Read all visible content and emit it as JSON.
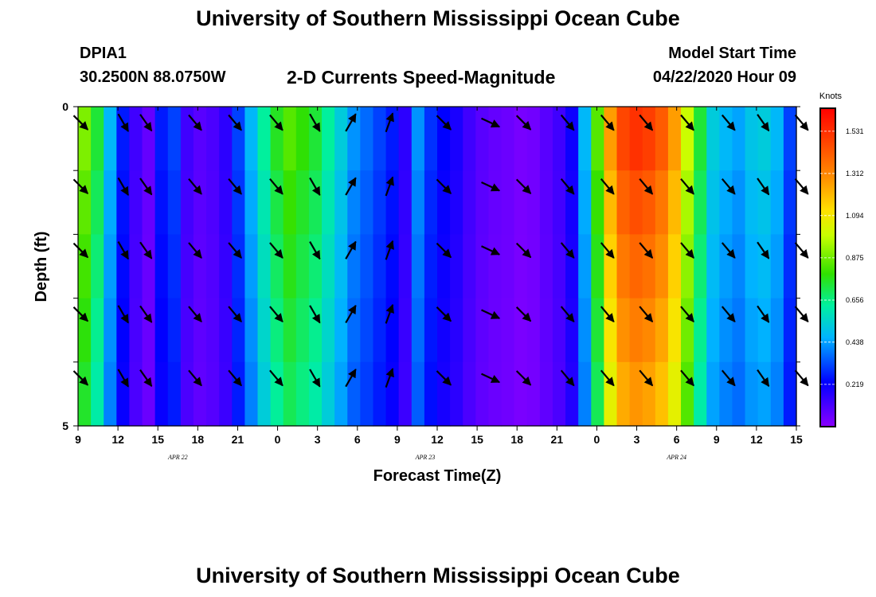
{
  "header": {
    "title": "University of Southern Mississippi Ocean Cube",
    "station": "DPIA1",
    "coords": "30.2500N 88.0750W",
    "subtitle": "2-D Currents Speed-Magnitude",
    "model_start_label": "Model Start Time",
    "model_start_value": "04/22/2020 Hour 09",
    "footer": "University of Southern Mississippi Ocean Cube"
  },
  "chart_data": {
    "type": "heatmap",
    "title": "2-D Currents Speed-Magnitude",
    "xlabel": "Forecast Time(Z)",
    "ylabel": "Depth (ft)",
    "x_tick_labels": [
      "9",
      "12",
      "15",
      "18",
      "21",
      "0",
      "3",
      "6",
      "9",
      "12",
      "15",
      "18",
      "21",
      "0",
      "3",
      "6",
      "9",
      "12",
      "15"
    ],
    "date_labels": [
      {
        "text": "APR 22",
        "at_tick": 2.5
      },
      {
        "text": "APR 23",
        "at_tick": 8.7
      },
      {
        "text": "APR 24",
        "at_tick": 15.0
      }
    ],
    "y_tick_labels": [
      "0",
      "5"
    ],
    "ylim": [
      0,
      5
    ],
    "x_hours": 54,
    "depth_rows": 5,
    "colorbar": {
      "unit": "Knots",
      "ticks": [
        "1.531",
        "1.312",
        "1.094",
        "0.875",
        "0.656",
        "0.438",
        "0.219"
      ],
      "tick_values": [
        1.531,
        1.312,
        1.094,
        0.875,
        0.656,
        0.438,
        0.219
      ],
      "range": [
        0.0,
        1.65
      ]
    },
    "speed_by_hour": [
      0.85,
      0.7,
      0.45,
      0.25,
      0.12,
      0.06,
      0.25,
      0.3,
      0.12,
      0.08,
      0.1,
      0.15,
      0.3,
      0.45,
      0.6,
      0.72,
      0.8,
      0.75,
      0.7,
      0.6,
      0.5,
      0.4,
      0.35,
      0.3,
      0.25,
      0.15,
      0.4,
      0.28,
      0.22,
      0.18,
      0.12,
      0.08,
      0.06,
      0.05,
      0.03,
      0.04,
      0.08,
      0.12,
      0.2,
      0.45,
      0.8,
      1.2,
      1.4,
      1.45,
      1.42,
      1.35,
      1.2,
      0.95,
      0.7,
      0.5,
      0.45,
      0.42,
      0.48,
      0.5,
      0.45,
      0.3
    ],
    "row_factors": [
      1.05,
      1.0,
      0.96,
      0.92,
      0.88
    ],
    "arrows": [
      {
        "t": 0.2,
        "dir": 135
      },
      {
        "t": 3.4,
        "dir": 150
      },
      {
        "t": 5.1,
        "dir": 145
      },
      {
        "t": 8.8,
        "dir": 140
      },
      {
        "t": 11.8,
        "dir": 140
      },
      {
        "t": 14.9,
        "dir": 140
      },
      {
        "t": 17.8,
        "dir": 150
      },
      {
        "t": 20.5,
        "dir": 30
      },
      {
        "t": 23.4,
        "dir": 20
      },
      {
        "t": 27.5,
        "dir": 135
      },
      {
        "t": 31.0,
        "dir": 115
      },
      {
        "t": 33.5,
        "dir": 135
      },
      {
        "t": 36.8,
        "dir": 140
      },
      {
        "t": 39.8,
        "dir": 140
      },
      {
        "t": 42.7,
        "dir": 140
      },
      {
        "t": 45.8,
        "dir": 140
      },
      {
        "t": 48.9,
        "dir": 140
      },
      {
        "t": 51.5,
        "dir": 145
      },
      {
        "t": 54.4,
        "dir": 140
      }
    ]
  }
}
